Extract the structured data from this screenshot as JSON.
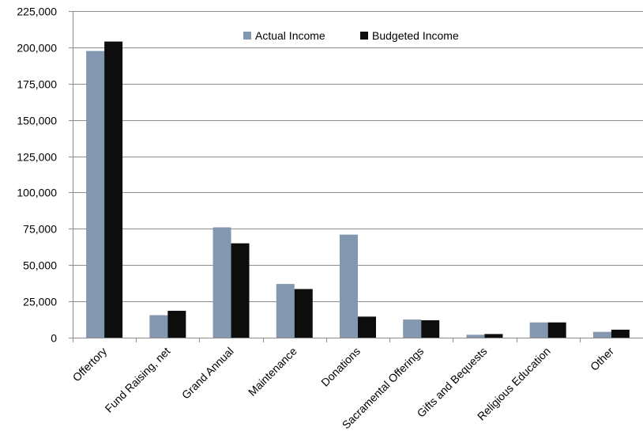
{
  "chart_data": {
    "type": "bar",
    "categories": [
      "Offertory",
      "Fund Raising, net",
      "Grand Annual",
      "Maintenance",
      "Donations",
      "Sacramental Offerings",
      "Gifts and Bequests",
      "Religious Education",
      "Other"
    ],
    "series": [
      {
        "name": "Actual Income",
        "color": "#8497b0",
        "values": [
          197500,
          15500,
          76000,
          37000,
          71000,
          12500,
          2000,
          10500,
          4000
        ]
      },
      {
        "name": "Budgeted Income",
        "color": "#0d0d0d",
        "values": [
          204000,
          18500,
          65000,
          33500,
          14500,
          12000,
          2500,
          10500,
          5500
        ]
      }
    ],
    "ylim": [
      0,
      225000
    ],
    "yticks": [
      0,
      25000,
      50000,
      75000,
      100000,
      125000,
      150000,
      175000,
      200000,
      225000
    ],
    "ytick_labels": [
      "0",
      "25,000",
      "50,000",
      "75,000",
      "100,000",
      "125,000",
      "150,000",
      "175,000",
      "200,000",
      "225,000"
    ],
    "grid": true,
    "legend": "top-center",
    "title": "",
    "xlabel": "",
    "ylabel": ""
  }
}
